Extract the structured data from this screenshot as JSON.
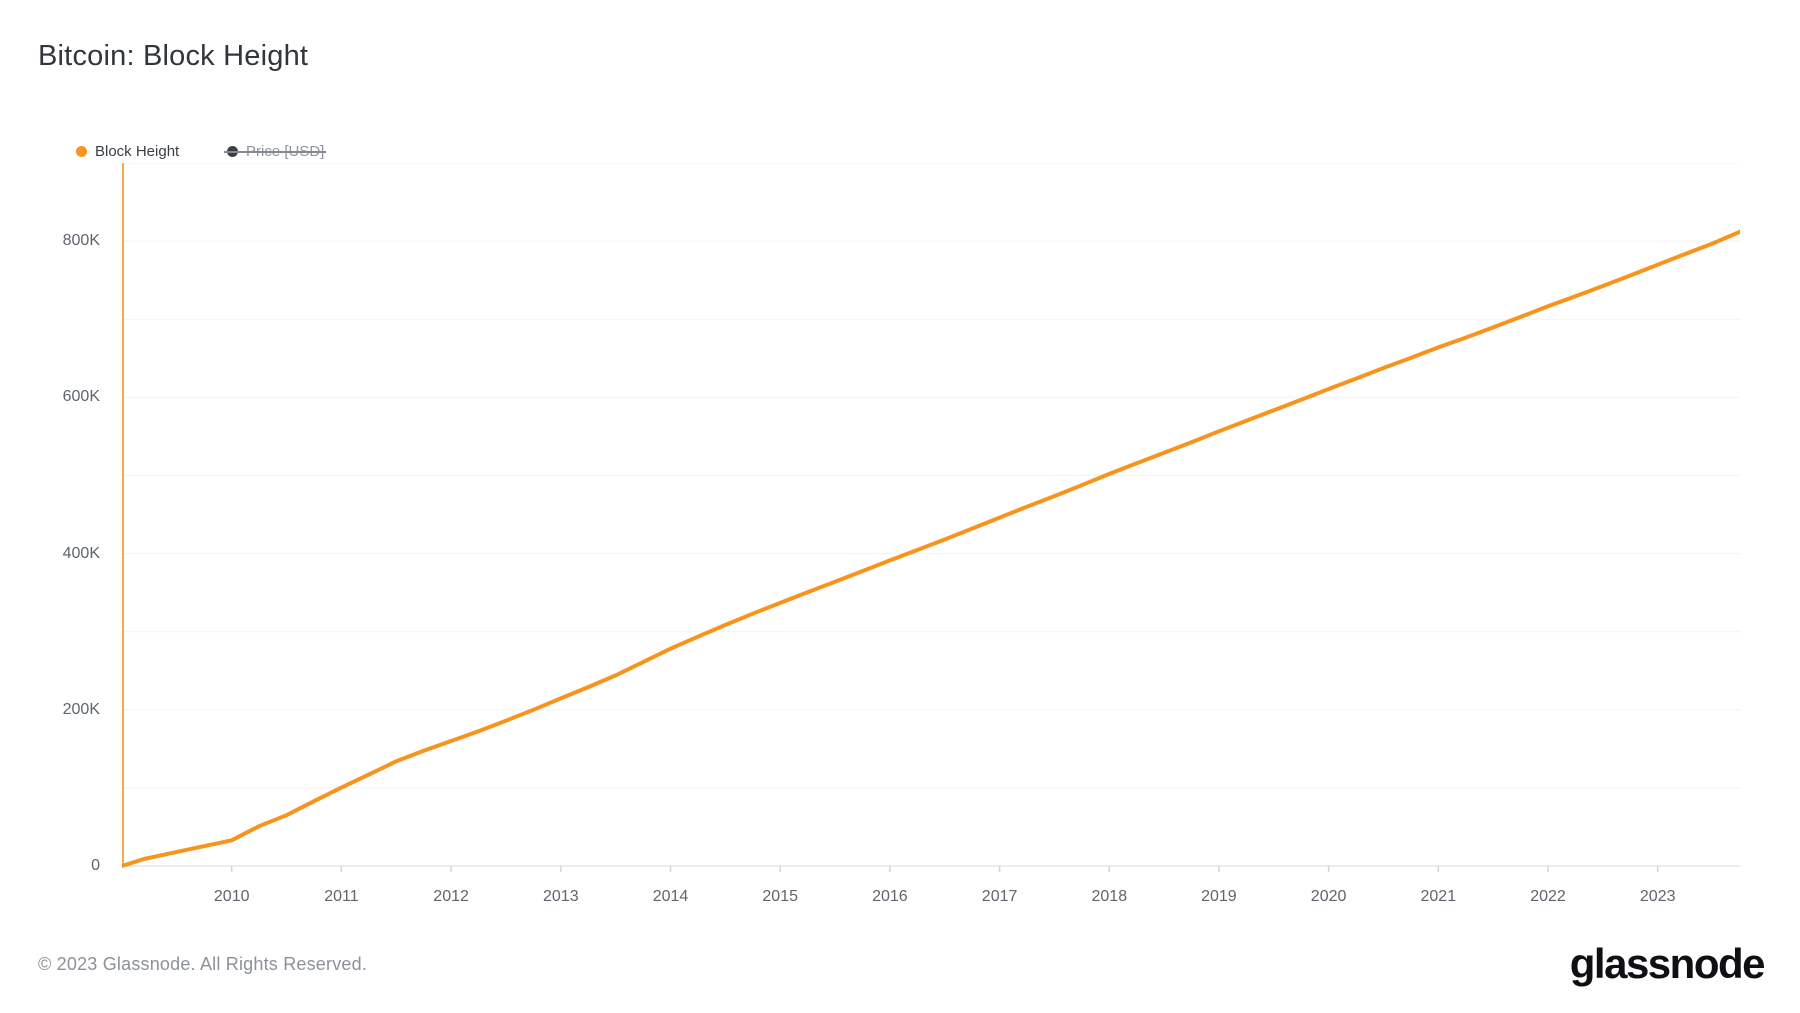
{
  "chart_data": {
    "type": "line",
    "title": "Bitcoin: Block Height",
    "grid": "horizontal",
    "legend": {
      "position": "top-left",
      "items": [
        {
          "label": "Block Height",
          "color": "#F7941D",
          "enabled": true
        },
        {
          "label": "Price [USD]",
          "color": "#3A3F46",
          "enabled": false
        }
      ]
    },
    "x_axis": {
      "min": 2009.0,
      "max": 2023.75,
      "tick_years": [
        2010,
        2011,
        2012,
        2013,
        2014,
        2015,
        2016,
        2017,
        2018,
        2019,
        2020,
        2021,
        2022,
        2023
      ]
    },
    "y_axis": {
      "min": 0,
      "max": 900000,
      "grid_step": 100000,
      "ticks": [
        {
          "value": 800000,
          "label": "800K"
        },
        {
          "value": 600000,
          "label": "600K"
        },
        {
          "value": 400000,
          "label": "400K"
        },
        {
          "value": 200000,
          "label": "200K"
        },
        {
          "value": 0,
          "label": "0"
        }
      ]
    },
    "series": [
      {
        "name": "Block Height",
        "color": "#F7941D",
        "axis_line_color": "#F9A94B",
        "x": [
          2009.0,
          2009.2,
          2009.4,
          2009.6,
          2009.8,
          2010.0,
          2010.25,
          2010.5,
          2010.75,
          2011.0,
          2011.25,
          2011.5,
          2011.75,
          2012.0,
          2012.25,
          2012.5,
          2012.75,
          2013.0,
          2013.25,
          2013.5,
          2013.75,
          2014.0,
          2014.25,
          2014.5,
          2014.75,
          2015.0,
          2015.25,
          2015.5,
          2015.75,
          2016.0,
          2016.25,
          2016.5,
          2016.75,
          2017.0,
          2017.25,
          2017.5,
          2017.75,
          2018.0,
          2018.25,
          2018.5,
          2018.75,
          2019.0,
          2019.25,
          2019.5,
          2019.75,
          2020.0,
          2020.25,
          2020.5,
          2020.75,
          2021.0,
          2021.25,
          2021.5,
          2021.75,
          2022.0,
          2022.25,
          2022.5,
          2022.75,
          2023.0,
          2023.25,
          2023.5,
          2023.75
        ],
        "y": [
          0,
          9000,
          15000,
          21000,
          27000,
          32950,
          51000,
          65000,
          83000,
          100400,
          117000,
          134000,
          147500,
          160036,
          172500,
          186000,
          200000,
          214560,
          229000,
          244000,
          261000,
          278220,
          293500,
          308500,
          323000,
          336861,
          350500,
          364000,
          377500,
          391182,
          404500,
          418000,
          432000,
          446033,
          460000,
          473500,
          487500,
          501961,
          515500,
          529000,
          542500,
          556459,
          570000,
          583500,
          597000,
          610691,
          624000,
          637500,
          650500,
          663913,
          676500,
          689500,
          703000,
          716600,
          729500,
          742500,
          756000,
          769810,
          783500,
          797000,
          812000
        ]
      }
    ],
    "colors": {
      "gridline": "#F1F2F3",
      "baseline": "#E5E7E9",
      "tick": "#D2D5D9",
      "axis_label": "#5F656D"
    }
  },
  "footer": {
    "copyright": "© 2023 Glassnode. All Rights Reserved.",
    "brand": "glassnode"
  }
}
